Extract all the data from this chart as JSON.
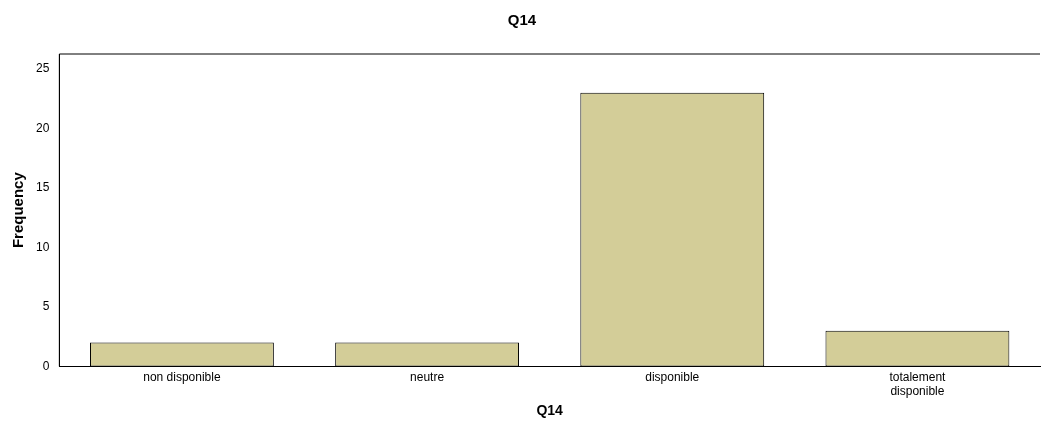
{
  "chart_data": {
    "type": "bar",
    "title": "Q14",
    "xlabel": "Q14",
    "ylabel": "Frequency",
    "categories": [
      "non disponible",
      "neutre",
      "disponible",
      "totalement disponible"
    ],
    "values": [
      2,
      2,
      23,
      3
    ],
    "color": "#d3cd98",
    "ylim": [
      0,
      26.25
    ],
    "yticks": [
      0,
      5,
      10,
      15,
      20,
      25
    ],
    "grid": false,
    "legend": false
  }
}
